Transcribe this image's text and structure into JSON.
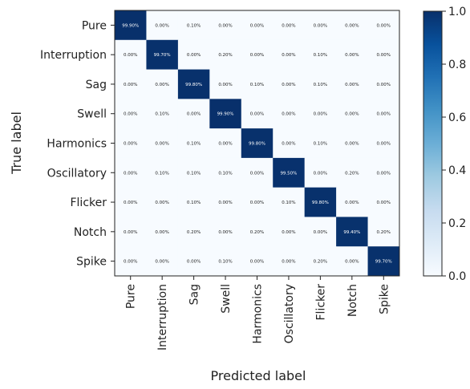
{
  "chart_data": {
    "type": "heatmap",
    "xlabel": "Predicted label",
    "ylabel": "True label",
    "categories": [
      "Pure",
      "Interruption",
      "Sag",
      "Swell",
      "Harmonics",
      "Oscillatory",
      "Flicker",
      "Notch",
      "Spike"
    ],
    "values": [
      [
        0.999,
        0.0,
        0.001,
        0.0,
        0.0,
        0.0,
        0.0,
        0.0,
        0.0
      ],
      [
        0.0,
        0.997,
        0.0,
        0.002,
        0.0,
        0.0,
        0.001,
        0.0,
        0.0
      ],
      [
        0.0,
        0.0,
        0.998,
        0.0,
        0.001,
        0.0,
        0.001,
        0.0,
        0.0
      ],
      [
        0.0,
        0.001,
        0.0,
        0.999,
        0.0,
        0.0,
        0.0,
        0.0,
        0.0
      ],
      [
        0.0,
        0.0,
        0.001,
        0.0,
        0.998,
        0.0,
        0.001,
        0.0,
        0.0
      ],
      [
        0.0,
        0.001,
        0.001,
        0.001,
        0.0,
        0.995,
        0.0,
        0.002,
        0.0
      ],
      [
        0.0,
        0.0,
        0.001,
        0.0,
        0.0,
        0.001,
        0.998,
        0.0,
        0.0
      ],
      [
        0.0,
        0.0,
        0.002,
        0.0,
        0.002,
        0.0,
        0.0,
        0.994,
        0.002
      ],
      [
        0.0,
        0.0,
        0.0,
        0.001,
        0.0,
        0.0,
        0.002,
        0.0,
        0.997
      ]
    ],
    "cell_labels": [
      [
        "99.90%",
        "0.00%",
        "0.10%",
        "0.00%",
        "0.00%",
        "0.00%",
        "0.00%",
        "0.00%",
        "0.00%"
      ],
      [
        "0.00%",
        "99.70%",
        "0.00%",
        "0.20%",
        "0.00%",
        "0.00%",
        "0.10%",
        "0.00%",
        "0.00%"
      ],
      [
        "0.00%",
        "0.00%",
        "99.80%",
        "0.00%",
        "0.10%",
        "0.00%",
        "0.10%",
        "0.00%",
        "0.00%"
      ],
      [
        "0.00%",
        "0.10%",
        "0.00%",
        "99.90%",
        "0.00%",
        "0.00%",
        "0.00%",
        "0.00%",
        "0.00%"
      ],
      [
        "0.00%",
        "0.00%",
        "0.10%",
        "0.00%",
        "99.80%",
        "0.00%",
        "0.10%",
        "0.00%",
        "0.00%"
      ],
      [
        "0.00%",
        "0.10%",
        "0.10%",
        "0.10%",
        "0.00%",
        "99.50%",
        "0.00%",
        "0.20%",
        "0.00%"
      ],
      [
        "0.00%",
        "0.00%",
        "0.10%",
        "0.00%",
        "0.00%",
        "0.10%",
        "99.80%",
        "0.00%",
        "0.00%"
      ],
      [
        "0.00%",
        "0.00%",
        "0.20%",
        "0.00%",
        "0.20%",
        "0.00%",
        "0.00%",
        "99.40%",
        "0.20%"
      ],
      [
        "0.00%",
        "0.00%",
        "0.00%",
        "0.10%",
        "0.00%",
        "0.00%",
        "0.20%",
        "0.00%",
        "99.70%"
      ]
    ],
    "colormap": {
      "low": "#f7fbff",
      "high": "#08306b",
      "name": "Blues"
    },
    "colorbar": {
      "range": [
        0.0,
        1.0
      ],
      "ticks": [
        "0.0",
        "0.2",
        "0.4",
        "0.6",
        "0.8",
        "1.0"
      ],
      "tick_values": [
        0.0,
        0.2,
        0.4,
        0.6,
        0.8,
        1.0
      ]
    }
  }
}
